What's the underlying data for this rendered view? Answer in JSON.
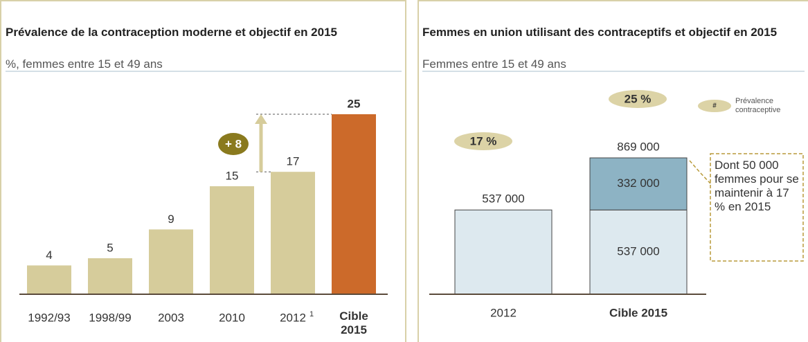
{
  "chart_data": [
    {
      "type": "bar",
      "title": "Prévalence de la contraception moderne et objectif en 2015",
      "subtitle": "%, femmes entre 15 et 49 ans",
      "categories": [
        "1992/93",
        "1998/99",
        "2003",
        "2010",
        "2012",
        "Cible 2015"
      ],
      "footnote_marker": "1",
      "values": [
        4,
        5,
        9,
        15,
        17,
        25
      ],
      "colors": [
        "#d6cc9b",
        "#d6cc9b",
        "#d6cc9b",
        "#d6cc9b",
        "#d6cc9b",
        "#cc6a2a"
      ],
      "annotation": "+ 8"
    },
    {
      "type": "stacked_bar",
      "title": "Femmes en union utilisant des contraceptifs et objectif en 2015",
      "subtitle": "Femmes entre 15 et 49 ans",
      "categories": [
        "2012",
        "Cible 2015"
      ],
      "series": [
        {
          "color": "#dde9ef",
          "values": [
            537000,
            537000
          ],
          "value_labels": [
            null,
            "537 000"
          ]
        },
        {
          "color": "#8db3c4",
          "values": [
            null,
            332000
          ],
          "value_labels": [
            null,
            "332 000"
          ]
        }
      ],
      "totals": [
        537000,
        869000
      ],
      "total_labels": [
        "537 000",
        "869 000"
      ],
      "prevalence": [
        17,
        25
      ],
      "prevalence_labels": [
        "17 %",
        "25 %"
      ],
      "legend_symbol": "#",
      "legend_label": "Prévalence contraceptive",
      "callout": "Dont 50 000 femmes pour se maintenir à 17 % en 2015"
    }
  ]
}
